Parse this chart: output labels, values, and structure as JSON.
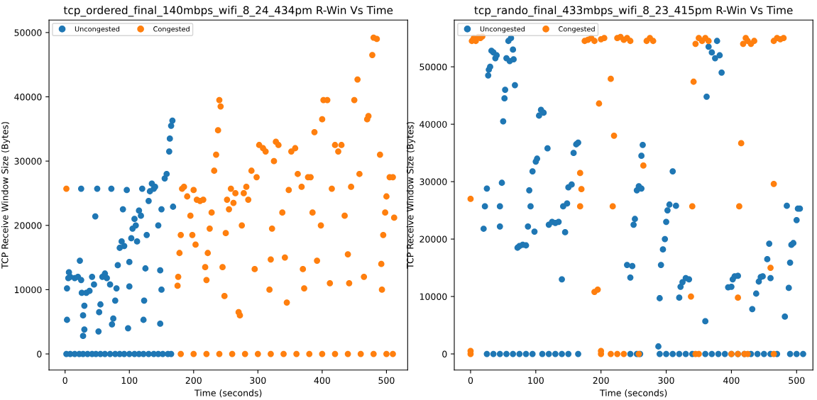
{
  "chart_data": [
    {
      "type": "scatter",
      "title": "tcp_ordered_final_140mbps_wifi_8_24_434pm R-Win Vs Time",
      "xlabel": "Time (seconds)",
      "ylabel": "TCP Receive Window Size (Bytes)",
      "xlim": [
        -25,
        533
      ],
      "ylim": [
        -2500,
        51950
      ],
      "xticks": [
        0,
        100,
        200,
        300,
        400,
        500
      ],
      "yticks": [
        0,
        10000,
        20000,
        30000,
        40000,
        50000
      ],
      "legend": "top left",
      "marker": "circle",
      "series": [
        {
          "name": "Uncongested",
          "color": "#1f77b4",
          "x": [
            2,
            8,
            15,
            22,
            28,
            35,
            42,
            48,
            55,
            62,
            70,
            78,
            85,
            92,
            100,
            108,
            115,
            122,
            130,
            138,
            145,
            152,
            160,
            165,
            3,
            3,
            5,
            8,
            6,
            15,
            20,
            25,
            23,
            25,
            26,
            28,
            30,
            30,
            28,
            33,
            38,
            42,
            45,
            47,
            50,
            52,
            53,
            55,
            58,
            62,
            65,
            70,
            72,
            73,
            75,
            78,
            80,
            82,
            85,
            88,
            90,
            92,
            96,
            98,
            100,
            100,
            103,
            105,
            108,
            110,
            112,
            115,
            118,
            120,
            122,
            123,
            125,
            127,
            130,
            132,
            135,
            138,
            140,
            145,
            148,
            148,
            150,
            150,
            155,
            158,
            162,
            163,
            165,
            167,
            168
          ],
          "values": [
            0,
            0,
            0,
            0,
            0,
            0,
            0,
            0,
            0,
            0,
            0,
            0,
            0,
            0,
            0,
            0,
            0,
            0,
            0,
            0,
            0,
            0,
            0,
            0,
            5300,
            10200,
            11800,
            12000,
            12700,
            11800,
            12000,
            11500,
            14500,
            25700,
            9500,
            6000,
            7500,
            3800,
            2800,
            9500,
            9800,
            12000,
            10800,
            21400,
            25700,
            3500,
            6500,
            7700,
            12000,
            12500,
            11800,
            10800,
            25700,
            4600,
            5500,
            8300,
            10200,
            13800,
            16500,
            17500,
            22500,
            16800,
            25500,
            4000,
            10500,
            14300,
            18000,
            19500,
            21000,
            20000,
            17500,
            22300,
            21500,
            25700,
            5300,
            8300,
            13300,
            18500,
            23800,
            25300,
            26500,
            25700,
            26000,
            20000,
            13000,
            4700,
            10000,
            22500,
            27300,
            28000,
            31500,
            33500,
            35500,
            36300,
            22900
          ]
        },
        {
          "name": "Congested",
          "color": "#ff7f0e",
          "x": [
            2,
            175,
            176,
            178,
            180,
            182,
            185,
            190,
            195,
            198,
            200,
            203,
            205,
            210,
            215,
            218,
            220,
            222,
            225,
            228,
            232,
            235,
            238,
            240,
            242,
            245,
            248,
            250,
            252,
            255,
            258,
            262,
            265,
            270,
            272,
            275,
            278,
            282,
            285,
            290,
            295,
            298,
            302,
            308,
            312,
            318,
            320,
            322,
            325,
            328,
            332,
            338,
            342,
            345,
            348,
            352,
            358,
            362,
            368,
            370,
            372,
            378,
            382,
            385,
            388,
            392,
            398,
            400,
            402,
            408,
            412,
            415,
            420,
            425,
            430,
            435,
            440,
            442,
            445,
            450,
            455,
            458,
            465,
            470,
            472,
            478,
            480,
            485,
            490,
            492,
            493,
            495,
            498,
            500,
            505,
            510,
            512,
            180,
            200,
            220,
            240,
            260,
            280,
            300,
            320,
            340,
            360,
            380,
            400,
            420,
            440,
            460,
            480,
            500,
            510
          ],
          "values": [
            25700,
            10600,
            12000,
            15700,
            18500,
            25700,
            26000,
            24500,
            21500,
            18500,
            25500,
            17000,
            24000,
            23800,
            24000,
            13500,
            11500,
            15700,
            19500,
            22000,
            28500,
            31000,
            34800,
            39500,
            38500,
            13500,
            9000,
            18800,
            24000,
            22500,
            25700,
            23500,
            25000,
            6500,
            6000,
            20000,
            25000,
            26000,
            24000,
            28500,
            13200,
            27500,
            32500,
            32000,
            31500,
            10000,
            14700,
            19500,
            30000,
            33000,
            32500,
            22000,
            15000,
            8000,
            25500,
            31500,
            32000,
            28000,
            26000,
            13200,
            10200,
            27500,
            27500,
            22000,
            34500,
            14500,
            20000,
            36500,
            39500,
            39500,
            11000,
            25700,
            32500,
            31500,
            32500,
            21500,
            15500,
            11000,
            26000,
            39500,
            42700,
            28000,
            12000,
            36500,
            37000,
            46500,
            49200,
            49000,
            31000,
            14000,
            10000,
            18500,
            22000,
            24500,
            27500,
            27500,
            21200,
            0,
            0,
            0,
            0,
            0,
            0,
            0,
            0,
            0,
            0,
            0,
            0,
            0,
            0,
            0,
            0,
            0,
            0
          ]
        }
      ]
    },
    {
      "type": "scatter",
      "title": "tcp_rando_final_433mbps_wifi_8_23_415pm R-Win Vs Time",
      "xlabel": "Time (seconds)",
      "ylabel": "TCP Receive Window Size (Bytes)",
      "xlim": [
        -25,
        525
      ],
      "ylim": [
        -2800,
        58150
      ],
      "xticks": [
        0,
        100,
        200,
        300,
        400,
        500
      ],
      "yticks": [
        0,
        10000,
        20000,
        30000,
        40000,
        50000
      ],
      "legend": "top left",
      "marker": "circle",
      "series": [
        {
          "name": "Uncongested",
          "color": "#1f77b4",
          "x": [
            25,
            35,
            45,
            55,
            65,
            75,
            85,
            95,
            110,
            120,
            130,
            140,
            150,
            165,
            245,
            255,
            260,
            290,
            300,
            310,
            320,
            330,
            340,
            360,
            370,
            380,
            390,
            400,
            410,
            420,
            430,
            440,
            450,
            460,
            470,
            490,
            500,
            510,
            20,
            22,
            25,
            27,
            28,
            30,
            32,
            35,
            38,
            40,
            45,
            45,
            48,
            50,
            52,
            53,
            55,
            58,
            60,
            62,
            65,
            66,
            68,
            72,
            75,
            80,
            85,
            88,
            90,
            92,
            95,
            98,
            100,
            102,
            105,
            108,
            112,
            118,
            120,
            125,
            130,
            135,
            140,
            142,
            145,
            148,
            150,
            155,
            158,
            162,
            165,
            240,
            245,
            248,
            250,
            252,
            255,
            258,
            262,
            262,
            264,
            288,
            290,
            292,
            295,
            298,
            300,
            302,
            305,
            310,
            315,
            320,
            322,
            325,
            330,
            335,
            360,
            362,
            365,
            370,
            375,
            378,
            382,
            385,
            395,
            400,
            402,
            405,
            410,
            432,
            438,
            442,
            445,
            448,
            455,
            458,
            460,
            482,
            485,
            488,
            490,
            492,
            495,
            500,
            502,
            505
          ],
          "values": [
            0,
            0,
            0,
            0,
            0,
            0,
            0,
            0,
            0,
            0,
            0,
            0,
            0,
            0,
            0,
            0,
            0,
            0,
            0,
            0,
            0,
            0,
            0,
            0,
            0,
            0,
            0,
            0,
            0,
            0,
            0,
            0,
            0,
            0,
            0,
            0,
            0,
            0,
            21800,
            25700,
            28800,
            48500,
            49500,
            50000,
            52800,
            52500,
            51500,
            52000,
            25700,
            22200,
            29800,
            40500,
            44500,
            46000,
            51500,
            54500,
            51000,
            55000,
            53000,
            51300,
            46800,
            18500,
            18800,
            19000,
            18900,
            22200,
            28500,
            25700,
            31800,
            21300,
            33500,
            34000,
            41500,
            42500,
            42000,
            35800,
            22500,
            23000,
            22800,
            23000,
            13000,
            25700,
            21200,
            26200,
            29000,
            29500,
            35000,
            36500,
            36800,
            15500,
            13300,
            15300,
            22500,
            23500,
            28500,
            29200,
            28800,
            34500,
            36400,
            1300,
            9700,
            15500,
            18200,
            20000,
            23000,
            25000,
            26000,
            31800,
            25800,
            9800,
            11700,
            12500,
            13200,
            13000,
            5700,
            44800,
            53500,
            52500,
            51500,
            54500,
            52000,
            49000,
            11600,
            11700,
            13000,
            13500,
            13600,
            7800,
            10500,
            12600,
            13400,
            13500,
            16500,
            19200,
            13200,
            6500,
            25800,
            11500,
            15900,
            19000,
            19300,
            23300,
            25300,
            25300
          ]
        },
        {
          "name": "Congested",
          "color": "#ff7f0e",
          "x": [
            0,
            0,
            0,
            2,
            5,
            8,
            12,
            15,
            18,
            190,
            195,
            197,
            200,
            200,
            175,
            180,
            185,
            190,
            200,
            205,
            215,
            218,
            220,
            225,
            230,
            235,
            240,
            245,
            258,
            265,
            270,
            275,
            280,
            170,
            168,
            168,
            215,
            225,
            235,
            345,
            350,
            400,
            410,
            420,
            425,
            465,
            338,
            340,
            342,
            345,
            350,
            355,
            360,
            365,
            410,
            412,
            415,
            418,
            422,
            425,
            430,
            435,
            460,
            465,
            465,
            470,
            475,
            480
          ],
          "values": [
            27000,
            500,
            0,
            54500,
            55000,
            54500,
            55200,
            55000,
            55300,
            10800,
            11200,
            43600,
            500,
            0,
            54500,
            54700,
            55000,
            54500,
            54800,
            55000,
            47900,
            25700,
            38000,
            55000,
            55200,
            54700,
            55000,
            54500,
            0,
            32800,
            54500,
            55000,
            54500,
            28700,
            31500,
            25700,
            0,
            0,
            0,
            0,
            0,
            0,
            0,
            0,
            0,
            0,
            10000,
            25700,
            47400,
            54000,
            55000,
            54500,
            55000,
            54500,
            9800,
            25700,
            36700,
            54000,
            55000,
            54500,
            54000,
            54500,
            15000,
            29600,
            54500,
            55000,
            54800,
            55000
          ]
        }
      ]
    }
  ]
}
